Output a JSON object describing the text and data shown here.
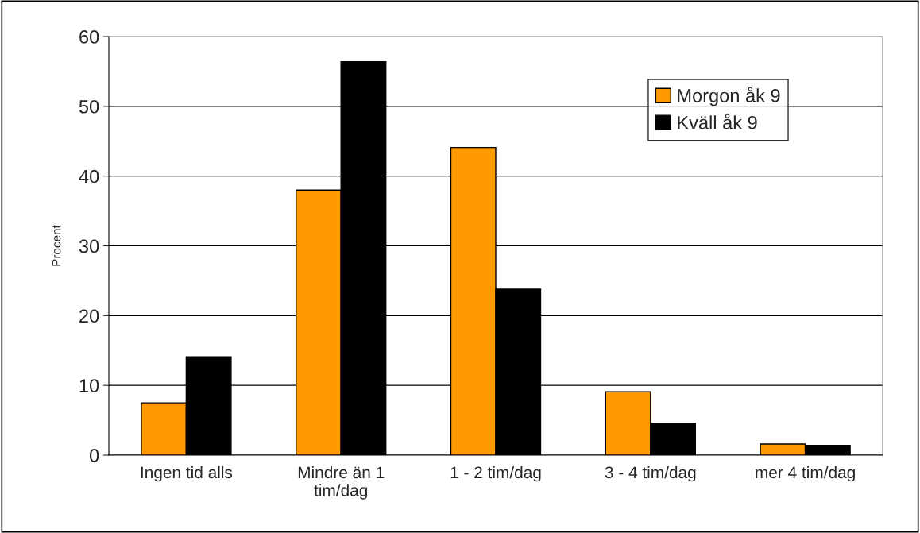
{
  "chart_data": {
    "type": "bar",
    "ylabel": "Procent",
    "categories": [
      "Ingen tid alls",
      "Mindre än 1 tim/dag",
      "1 - 2 tim/dag",
      "3 - 4 tim/dag",
      "mer 4 tim/dag"
    ],
    "series": [
      {
        "name": "Morgon åk 9",
        "color": "#ff9900",
        "values": [
          7.5,
          38.0,
          44.1,
          9.1,
          1.6
        ]
      },
      {
        "name": "Kväll åk 9",
        "color": "#000000",
        "values": [
          14.1,
          56.4,
          23.8,
          4.6,
          1.4
        ]
      }
    ],
    "ylim": [
      0,
      60
    ],
    "yticks": [
      0,
      10,
      20,
      30,
      40,
      50,
      60
    ],
    "grid": "y",
    "legend": "top right"
  }
}
